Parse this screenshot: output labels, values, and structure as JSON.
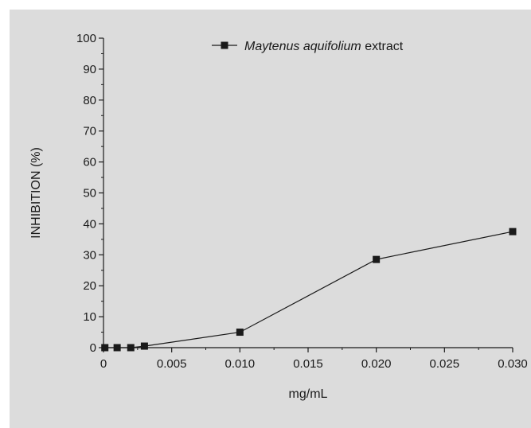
{
  "colors": {
    "background": "#dcdcdc",
    "axis": "#1a1a1a",
    "series": "#1a1a1a"
  },
  "chart_data": {
    "type": "line",
    "title": "",
    "xlabel": "mg/mL",
    "ylabel": "INHIBITION (%)",
    "xlim": [
      0,
      0.03
    ],
    "ylim": [
      0,
      100
    ],
    "x_ticks": [
      "0",
      "0.005",
      "0.010",
      "0.015",
      "0.020",
      "0.025",
      "0.030"
    ],
    "y_ticks": [
      "0",
      "10",
      "20",
      "30",
      "40",
      "50",
      "60",
      "70",
      "80",
      "90",
      "100"
    ],
    "marker": "square",
    "grid": false,
    "legend_position": "top-right",
    "legend": {
      "italic_part": "Maytenus aquifolium",
      "plain_part": " extract"
    },
    "series": [
      {
        "name": "Maytenus aquifolium extract",
        "x": [
          0.0001,
          0.001,
          0.002,
          0.003,
          0.01,
          0.02,
          0.03
        ],
        "y": [
          0,
          0,
          0,
          0.5,
          5,
          28.5,
          37.5
        ]
      }
    ]
  }
}
